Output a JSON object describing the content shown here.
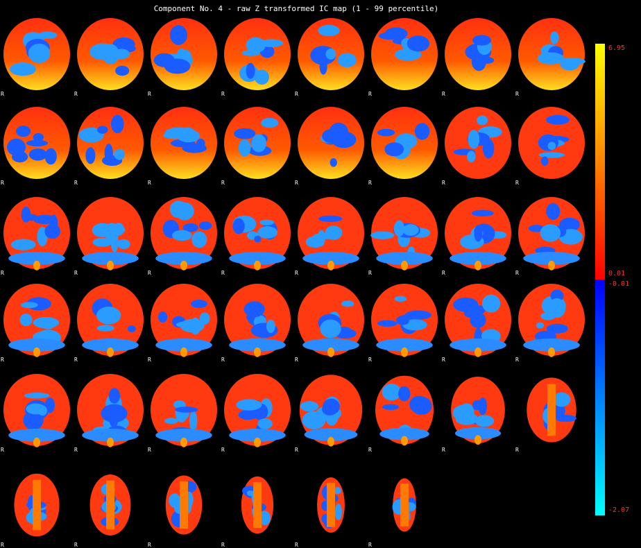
{
  "title": "Component No. 4 - raw Z transformed IC map (1 - 99 percentile)",
  "orientation_marker": "R",
  "grid": {
    "rows": 6,
    "columns": 8,
    "slice_count": 46
  },
  "colorbar": {
    "positive_max": "6.95",
    "positive_min": "0.01",
    "negative_min": "-0.01",
    "negative_max": "-2.07",
    "positive_colors": [
      "#ffff00",
      "#ff9000",
      "#ff0000"
    ],
    "negative_colors": [
      "#0000ff",
      "#0080ff",
      "#00ffff"
    ]
  },
  "colors": {
    "background": "#000000",
    "activation": "#ff3a10",
    "deactivation": "#1a5cff"
  }
}
